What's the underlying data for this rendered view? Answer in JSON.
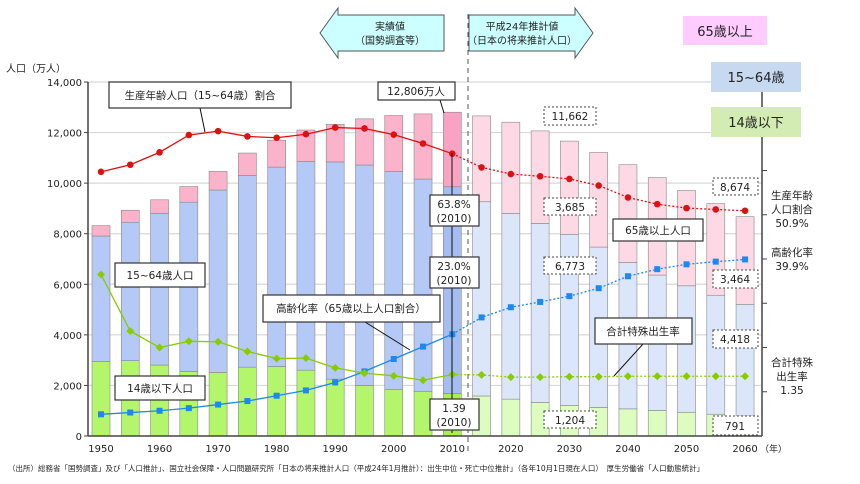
{
  "chart_data": {
    "type": "bar",
    "stacked": true,
    "ylabel": "人口（万人）",
    "xlabel_unit": "（年）",
    "ylim": [
      0,
      14000
    ],
    "yticks": [
      "0",
      "2,000",
      "4,000",
      "6,000",
      "8,000",
      "10,000",
      "12,000",
      "14,000"
    ],
    "ytick_values": [
      0,
      2000,
      4000,
      6000,
      8000,
      10000,
      12000,
      14000
    ],
    "xticks": [
      "1950",
      "1960",
      "1970",
      "1980",
      "1990",
      "2000",
      "2010",
      "2020",
      "2030",
      "2040",
      "2050",
      "2060"
    ],
    "xtick_values": [
      1950,
      1960,
      1970,
      1980,
      1990,
      2000,
      2010,
      2020,
      2030,
      2040,
      2050,
      2060
    ],
    "right_axis_range_percent": [
      0,
      80
    ],
    "grid": true,
    "years": [
      1950,
      1955,
      1960,
      1965,
      1970,
      1975,
      1980,
      1985,
      1990,
      1995,
      2000,
      2005,
      2010,
      2015,
      2020,
      2025,
      2030,
      2035,
      2040,
      2045,
      2050,
      2055,
      2060
    ],
    "projection_start_after": 2010,
    "series": [
      {
        "name": "14歳以下",
        "key": "age0_14",
        "color": "#b3f56b",
        "projected_color": "#dcfcc0",
        "values": [
          2943,
          2980,
          2807,
          2553,
          2515,
          2722,
          2751,
          2603,
          2249,
          2001,
          1847,
          1752,
          1684,
          1583,
          1457,
          1324,
          1204,
          1129,
          1073,
          1012,
          939,
          861,
          791
        ]
      },
      {
        "name": "15~64歳",
        "key": "age15_64",
        "color": "#b4c9f6",
        "projected_color": "#dce6fb",
        "values": [
          4966,
          5473,
          6000,
          6693,
          7212,
          7581,
          7883,
          8251,
          8590,
          8716,
          8622,
          8409,
          8173,
          7682,
          7341,
          7085,
          6773,
          6343,
          5787,
          5353,
          5001,
          4706,
          4418
        ]
      },
      {
        "name": "65歳以上",
        "key": "age65",
        "color": "#fbb3cc",
        "projected_color": "#fdd9e6",
        "values": [
          411,
          475,
          535,
          618,
          739,
          887,
          1065,
          1247,
          1489,
          1826,
          2204,
          2576,
          2948,
          3395,
          3612,
          3657,
          3685,
          3741,
          3868,
          3856,
          3768,
          3626,
          3464
        ]
      }
    ],
    "line_series": [
      {
        "name": "生産年齢人口割合",
        "unit": "%",
        "color": "#dd1111",
        "values": [
          59.7,
          61.3,
          64.1,
          68.0,
          68.9,
          67.7,
          67.4,
          68.2,
          69.7,
          69.5,
          68.1,
          66.1,
          63.8,
          60.7,
          59.2,
          58.7,
          58.1,
          56.6,
          53.9,
          52.4,
          51.5,
          51.2,
          50.9
        ]
      },
      {
        "name": "高齢化率",
        "unit": "%",
        "color": "#1e88ee",
        "values": [
          4.9,
          5.3,
          5.7,
          6.3,
          7.1,
          7.9,
          9.1,
          10.3,
          12.1,
          14.6,
          17.4,
          20.2,
          23.0,
          26.8,
          29.1,
          30.3,
          31.6,
          33.4,
          36.1,
          37.7,
          38.8,
          39.4,
          39.9
        ]
      },
      {
        "name": "合計特殊出生率",
        "unit": "",
        "color": "#88cc00",
        "values": [
          3.65,
          2.37,
          2.0,
          2.14,
          2.13,
          1.91,
          1.75,
          1.76,
          1.54,
          1.42,
          1.36,
          1.26,
          1.39,
          1.38,
          1.33,
          1.33,
          1.34,
          1.34,
          1.35,
          1.35,
          1.35,
          1.35,
          1.35
        ]
      }
    ]
  },
  "header": {
    "actual_arrow": {
      "line1": "実績値",
      "line2": "（国勢調査等）"
    },
    "projection_arrow": {
      "line1": "平成24年推計値",
      "line2": "（日本の将来推計人口）"
    }
  },
  "legend": {
    "age65": {
      "label": "65歳以上",
      "color": "#ffccff"
    },
    "age15_64": {
      "label": "15~64歳",
      "color": "#c6d9f1"
    },
    "age0_14": {
      "label": "14歳以下",
      "color": "#d2ecb4"
    }
  },
  "annotations": {
    "working_ratio_label": "生産年齢人口（15~64歳）割合",
    "total_2010": "12,806万人",
    "working_2010": {
      "line1": "63.8%",
      "line2": "(2010)"
    },
    "aging_2010": {
      "line1": "23.0%",
      "line2": "(2010)"
    },
    "tfr_2010": {
      "line1": "1.39",
      "line2": "(2010)"
    },
    "pop15_64_label": "15~64歳人口",
    "pop0_14_label": "14歳以下人口",
    "aging_rate_label": "高齢化率（65歳以上人口割合）",
    "pop65_label": "65歳以上人口",
    "tfr_label": "合計特殊出生率",
    "total_2030": "11,662",
    "age65_2030": "3,685",
    "age15_64_2030": "6,773",
    "age0_14_2030": "1,204",
    "total_2060": "8,674",
    "age65_2060": "3,464",
    "age15_64_2060": "4,418",
    "age0_14_2060": "791",
    "right_working": {
      "line1": "生産年齢",
      "line2": "人口割合",
      "line3": "50.9%"
    },
    "right_aging": {
      "line1": "高齢化率",
      "line2": "39.9%"
    },
    "right_tfr": {
      "line1": "合計特殊",
      "line2": "出生率",
      "line3": "1.35"
    }
  },
  "footer": {
    "source": "（出所）総務省「国勢調査」及び「人口推計」、国立社会保障・人口問題研究所「日本の将来推計人口（平成24年1月推計）：出生中位・死亡中位推計」（各年10月1日現在人口）　厚生労働省「人口動態統計」"
  }
}
